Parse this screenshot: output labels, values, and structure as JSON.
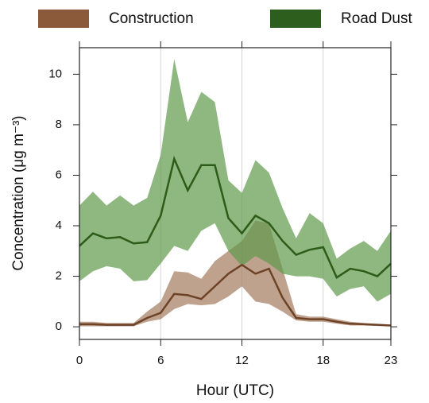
{
  "chart_data": {
    "type": "band-line",
    "x_label": "Hour (UTC)",
    "y_label": "Concentration (μg m⁻³)",
    "x": [
      0,
      1,
      2,
      3,
      4,
      5,
      6,
      7,
      8,
      9,
      10,
      11,
      12,
      13,
      14,
      15,
      16,
      17,
      18,
      19,
      20,
      21,
      22,
      23
    ],
    "xlim": [
      0,
      23
    ],
    "xticks": [
      0,
      6,
      12,
      18,
      23
    ],
    "ylim": [
      -0.5,
      11.05
    ],
    "yticks": [
      0,
      2,
      4,
      6,
      8,
      10
    ],
    "grid": "x",
    "legend": "top",
    "series": [
      {
        "name": "Construction",
        "color": "#6e4226",
        "fill": "#a37a5e",
        "legend_color": "#8a5a3a",
        "values": [
          0.1,
          0.1,
          0.08,
          0.08,
          0.08,
          0.35,
          0.55,
          1.3,
          1.25,
          1.1,
          1.6,
          2.1,
          2.45,
          2.1,
          2.3,
          1.15,
          0.35,
          0.3,
          0.3,
          0.2,
          0.12,
          0.1,
          0.08,
          0.05
        ],
        "upper": [
          0.2,
          0.2,
          0.15,
          0.15,
          0.15,
          0.6,
          1.0,
          2.2,
          2.15,
          1.9,
          2.6,
          3.0,
          3.4,
          4.2,
          4.1,
          2.3,
          0.5,
          0.4,
          0.4,
          0.3,
          0.2,
          0.15,
          0.1,
          0.07
        ],
        "lower": [
          0.02,
          0.02,
          0.02,
          0.02,
          0.02,
          0.2,
          0.3,
          0.7,
          0.9,
          0.85,
          0.9,
          1.2,
          1.6,
          1.0,
          0.9,
          0.6,
          0.25,
          0.2,
          0.2,
          0.12,
          0.05,
          0.05,
          0.03,
          0.02
        ]
      },
      {
        "name": "Road Dust",
        "color": "#2d5b18",
        "fill": "#5f9a4c",
        "legend_color": "#2e5e1e",
        "values": [
          3.2,
          3.7,
          3.5,
          3.55,
          3.3,
          3.35,
          4.4,
          6.65,
          5.4,
          6.4,
          6.4,
          4.3,
          3.7,
          4.4,
          4.1,
          3.4,
          2.85,
          3.05,
          3.15,
          1.95,
          2.3,
          2.2,
          2.0,
          2.5
        ],
        "upper": [
          4.8,
          5.35,
          4.8,
          5.2,
          4.8,
          5.1,
          6.8,
          10.6,
          8.1,
          9.3,
          8.9,
          5.8,
          5.3,
          6.6,
          6.1,
          4.7,
          3.5,
          4.5,
          4.1,
          2.7,
          3.1,
          3.4,
          3.0,
          3.8
        ],
        "lower": [
          1.8,
          2.2,
          2.4,
          2.3,
          1.8,
          1.85,
          2.5,
          3.2,
          3.0,
          3.8,
          4.1,
          3.0,
          2.4,
          2.8,
          2.5,
          2.1,
          2.0,
          2.0,
          1.9,
          1.2,
          1.5,
          1.6,
          1.0,
          1.3
        ]
      }
    ]
  }
}
